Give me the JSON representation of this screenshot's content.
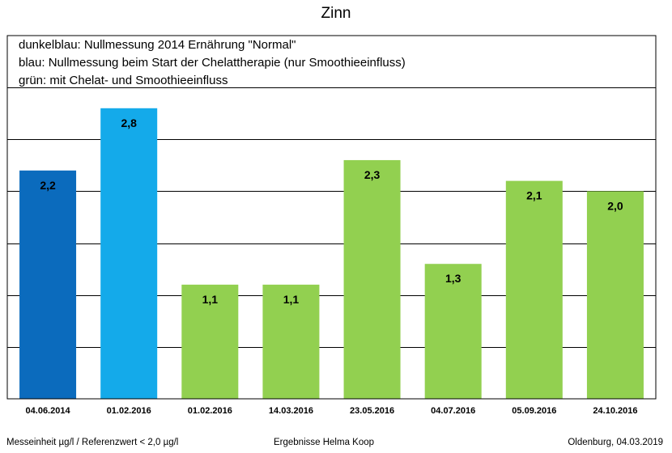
{
  "title": "Zinn",
  "legend": [
    "dunkelblau: Nullmessung 2014 Ernährung \"Normal\"",
    "blau: Nullmessung beim Start der Chelattherapie (nur Smoothieeinfluss)",
    "grün: mit Chelat- und Smoothieeinfluss"
  ],
  "footer": {
    "left": "Messeinheit µg/l / Referenzwert < 2,0 µg/l",
    "center": "Ergebnisse Helma Koop",
    "right": "Oldenburg, 04.03.2019"
  },
  "colors": {
    "dark_blue": "#0b6bbd",
    "blue": "#14aaea",
    "green": "#92d050"
  },
  "chart_data": {
    "type": "bar",
    "title": "Zinn",
    "categories": [
      "04.06.2014",
      "01.02.2016",
      "01.02.2016",
      "14.03.2016",
      "23.05.2016",
      "04.07.2016",
      "05.09.2016",
      "24.10.2016"
    ],
    "values": [
      2.2,
      2.8,
      1.1,
      1.1,
      2.3,
      1.3,
      2.1,
      2.0
    ],
    "value_labels": [
      "2,2",
      "2,8",
      "1,1",
      "1,1",
      "2,3",
      "1,3",
      "2,1",
      "2,0"
    ],
    "bar_groups": [
      "dark_blue",
      "blue",
      "green",
      "green",
      "green",
      "green",
      "green",
      "green"
    ],
    "ylim": [
      0,
      3.5
    ],
    "grid": true,
    "xlabel": "",
    "ylabel": ""
  }
}
